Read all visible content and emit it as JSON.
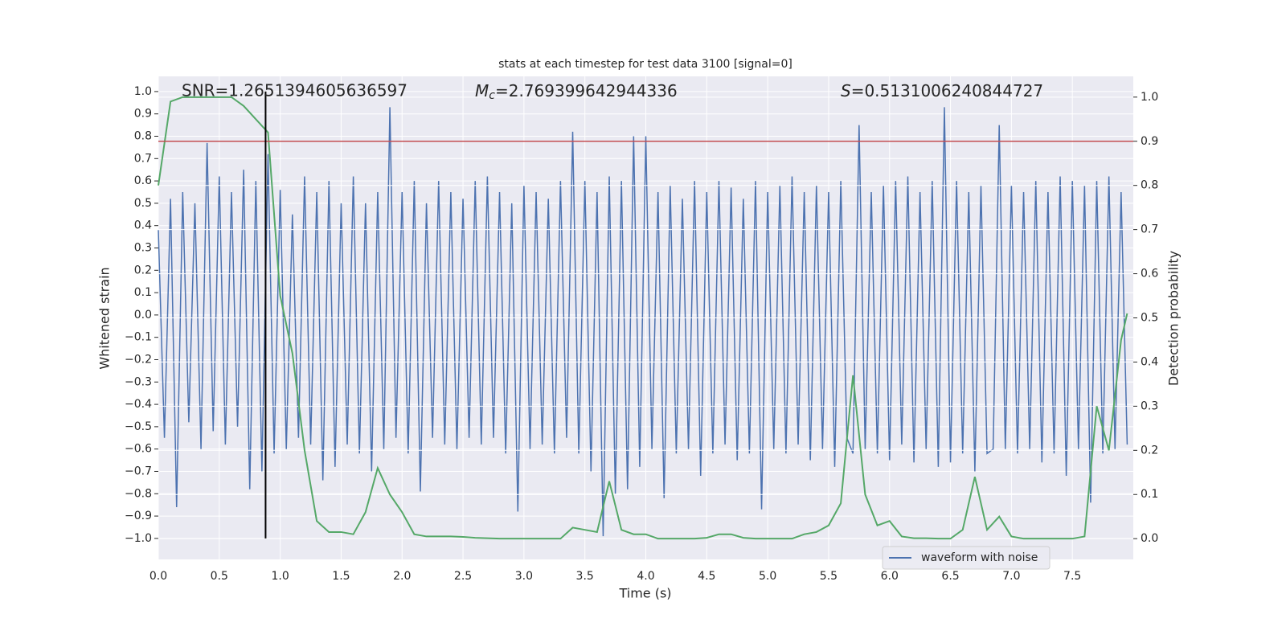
{
  "chart_data": {
    "type": "line",
    "title": "stats at each timestep for test data 3100 [signal=0]",
    "x_label": "Time (s)",
    "y_label": "Whitened strain",
    "y2_label": "Detection probability",
    "annotations": {
      "snr": "SNR=1.2651394605636597",
      "mc_symbol": "M",
      "mc_sub": "c",
      "mc_value": "=2.769399642944336",
      "s_symbol": "S",
      "s_value": "=0.5131006240844727"
    },
    "xlim": [
      0,
      8
    ],
    "ylim": [
      -1.094,
      1.068
    ],
    "y2lim": [
      -0.047,
      1.047
    ],
    "xticks": [
      {
        "value": 0,
        "label": "0.0"
      },
      0.5,
      {
        "value": 1,
        "label": "1.0"
      },
      1.5,
      {
        "value": 2,
        "label": "2.0"
      },
      2.5,
      {
        "value": 3,
        "label": "3.0"
      },
      3.5,
      {
        "value": 4,
        "label": "4.0"
      },
      4.5,
      {
        "value": 5,
        "label": "5.0"
      },
      5.5,
      {
        "value": 6,
        "label": "6.0"
      },
      6.5,
      {
        "value": 7,
        "label": "7.0"
      },
      7.5
    ],
    "yticks": [
      {
        "value": -1,
        "label": "−1.0"
      },
      {
        "value": -0.9,
        "label": "−0.9"
      },
      {
        "value": -0.8,
        "label": "−0.8"
      },
      {
        "value": -0.7,
        "label": "−0.7"
      },
      {
        "value": -0.6,
        "label": "−0.6"
      },
      {
        "value": -0.5,
        "label": "−0.5"
      },
      {
        "value": -0.4,
        "label": "−0.4"
      },
      {
        "value": -0.3,
        "label": "−0.3"
      },
      {
        "value": -0.2,
        "label": "−0.2"
      },
      {
        "value": -0.1,
        "label": "−0.1"
      },
      {
        "value": 0,
        "label": "0.0"
      },
      0.1,
      0.2,
      0.3,
      0.4,
      0.5,
      0.6,
      0.7,
      0.8,
      0.9,
      {
        "value": 1,
        "label": "1.0"
      }
    ],
    "y2ticks": [
      {
        "value": 0,
        "label": "0.0"
      },
      0.1,
      0.2,
      0.3,
      0.4,
      0.5,
      0.6,
      0.7,
      0.8,
      0.9,
      {
        "value": 1,
        "label": "1.0"
      }
    ],
    "grid": true,
    "legend": "lower right",
    "series": [
      {
        "name": "waveform with noise",
        "color": "#4c72b0",
        "x": [
          0,
          0.05,
          0.1,
          0.15,
          0.2,
          0.25,
          0.3,
          0.35,
          0.4,
          0.45,
          0.5,
          0.55,
          0.6,
          0.65,
          0.7,
          0.75,
          0.8,
          0.85,
          0.9,
          0.95,
          1,
          1.05,
          1.1,
          1.15,
          1.2,
          1.25,
          1.3,
          1.35,
          1.4,
          1.45,
          1.5,
          1.55,
          1.6,
          1.65,
          1.7,
          1.75,
          1.8,
          1.85,
          1.9,
          1.95,
          2,
          2.05,
          2.1,
          2.15,
          2.2,
          2.25,
          2.3,
          2.35,
          2.4,
          2.45,
          2.5,
          2.55,
          2.6,
          2.65,
          2.7,
          2.75,
          2.8,
          2.85,
          2.9,
          2.95,
          3,
          3.05,
          3.1,
          3.15,
          3.2,
          3.25,
          3.3,
          3.35,
          3.4,
          3.45,
          3.5,
          3.55,
          3.6,
          3.65,
          3.7,
          3.75,
          3.8,
          3.85,
          3.9,
          3.95,
          4,
          4.05,
          4.1,
          4.15,
          4.2,
          4.25,
          4.3,
          4.35,
          4.4,
          4.45,
          4.5,
          4.55,
          4.6,
          4.65,
          4.7,
          4.75,
          4.8,
          4.85,
          4.9,
          4.95,
          5,
          5.05,
          5.1,
          5.15,
          5.2,
          5.25,
          5.3,
          5.35,
          5.4,
          5.45,
          5.5,
          5.55,
          5.6,
          5.65,
          5.7,
          5.75,
          5.8,
          5.85,
          5.9,
          5.95,
          6,
          6.05,
          6.1,
          6.15,
          6.2,
          6.25,
          6.3,
          6.35,
          6.4,
          6.45,
          6.5,
          6.55,
          6.6,
          6.65,
          6.7,
          6.75,
          6.8,
          6.85,
          6.9,
          6.95,
          7,
          7.05,
          7.1,
          7.15,
          7.2,
          7.25,
          7.3,
          7.35,
          7.4,
          7.45,
          7.5,
          7.55,
          7.6,
          7.65,
          7.7,
          7.75,
          7.8,
          7.85,
          7.9,
          7.95
        ],
        "values": [
          0.38,
          -0.55,
          0.52,
          -0.86,
          0.55,
          -0.48,
          0.5,
          -0.6,
          0.77,
          -0.52,
          0.62,
          -0.58,
          0.55,
          -0.5,
          0.65,
          -0.78,
          0.6,
          -0.7,
          0.72,
          -0.62,
          0.56,
          -0.6,
          0.45,
          -0.55,
          0.62,
          -0.58,
          0.55,
          -0.74,
          0.6,
          -0.68,
          0.5,
          -0.58,
          0.62,
          -0.62,
          0.5,
          -0.7,
          0.55,
          -0.6,
          0.93,
          -0.55,
          0.55,
          -0.62,
          0.6,
          -0.79,
          0.5,
          -0.55,
          0.6,
          -0.58,
          0.55,
          -0.6,
          0.52,
          -0.55,
          0.6,
          -0.58,
          0.62,
          -0.55,
          0.55,
          -0.62,
          0.5,
          -0.88,
          0.58,
          -0.6,
          0.55,
          -0.58,
          0.52,
          -0.62,
          0.6,
          -0.55,
          0.82,
          -0.62,
          0.6,
          -0.7,
          0.55,
          -0.99,
          0.62,
          -0.8,
          0.6,
          -0.78,
          0.8,
          -0.68,
          0.8,
          -0.6,
          0.55,
          -0.82,
          0.58,
          -0.62,
          0.52,
          -0.6,
          0.6,
          -0.72,
          0.55,
          -0.62,
          0.6,
          -0.58,
          0.57,
          -0.65,
          0.52,
          -0.62,
          0.6,
          -0.87,
          0.55,
          -0.6,
          0.58,
          -0.62,
          0.62,
          -0.58,
          0.55,
          -0.65,
          0.58,
          -0.6,
          0.55,
          -0.68,
          0.6,
          -0.55,
          -0.62,
          0.85,
          -0.6,
          0.55,
          -0.62,
          0.58,
          -0.65,
          0.6,
          -0.58,
          0.62,
          -0.66,
          0.55,
          -0.6,
          0.6,
          -0.68,
          0.93,
          -0.66,
          0.6,
          -0.62,
          0.55,
          -0.7,
          0.58,
          -0.62,
          -0.6,
          0.85,
          -0.6,
          0.58,
          -0.62,
          0.55,
          -0.6,
          0.6,
          -0.66,
          0.55,
          -0.62,
          0.62,
          -0.72,
          0.6,
          -0.6,
          0.58,
          -0.84,
          0.6,
          -0.62,
          0.62,
          -0.6,
          0.55,
          -0.58
        ]
      },
      {
        "color": "#55a868",
        "axis": "y2",
        "x": [
          0,
          0.1,
          0.2,
          0.3,
          0.4,
          0.5,
          0.6,
          0.7,
          0.8,
          0.9,
          1,
          1.1,
          1.2,
          1.3,
          1.4,
          1.5,
          1.6,
          1.7,
          1.8,
          1.9,
          2,
          2.1,
          2.2,
          2.3,
          2.4,
          2.5,
          2.6,
          2.7,
          2.8,
          2.9,
          3,
          3.1,
          3.2,
          3.3,
          3.4,
          3.5,
          3.6,
          3.7,
          3.8,
          3.9,
          4,
          4.1,
          4.2,
          4.3,
          4.4,
          4.5,
          4.6,
          4.7,
          4.8,
          4.9,
          5,
          5.1,
          5.2,
          5.3,
          5.4,
          5.5,
          5.6,
          5.7,
          5.8,
          5.9,
          6,
          6.1,
          6.2,
          6.3,
          6.4,
          6.5,
          6.6,
          6.7,
          6.8,
          6.9,
          7,
          7.1,
          7.2,
          7.3,
          7.4,
          7.5,
          7.6,
          7.7,
          7.8,
          7.9,
          7.95
        ],
        "values": [
          0.8,
          0.99,
          1,
          1,
          1,
          1,
          1,
          0.98,
          0.95,
          0.92,
          0.55,
          0.42,
          0.2,
          0.04,
          0.015,
          0.015,
          0.01,
          0.06,
          0.16,
          0.1,
          0.06,
          0.01,
          0.005,
          0.005,
          0.005,
          0.004,
          0.002,
          0.001,
          0,
          0,
          0,
          0,
          0,
          0,
          0.025,
          0.02,
          0.015,
          0.13,
          0.02,
          0.01,
          0.01,
          0,
          0,
          0,
          0,
          0.002,
          0.01,
          0.01,
          0.002,
          0,
          0,
          0,
          0,
          0.01,
          0.015,
          0.03,
          0.08,
          0.37,
          0.1,
          0.03,
          0.04,
          0.005,
          0.001,
          0.001,
          0,
          0,
          0.02,
          0.14,
          0.02,
          0.05,
          0.005,
          0,
          0,
          0,
          0,
          0,
          0.005,
          0.3,
          0.2,
          0.45,
          0.51
        ]
      }
    ],
    "threshold": {
      "value": 0.9,
      "axis": "y2",
      "color": "#c44e52"
    },
    "marker": {
      "x": 0.88,
      "y": [
        -1,
        1
      ],
      "color": "#000000"
    }
  }
}
